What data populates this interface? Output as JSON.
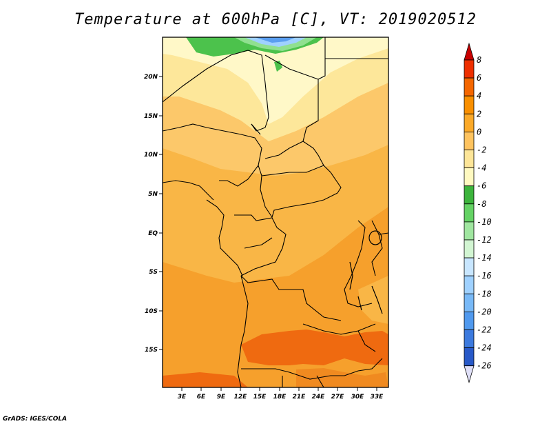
{
  "title": "Temperature at 600hPa [C], VT: 2019020512",
  "credit": "GrADS: IGES/COLA",
  "lat_labels": [
    "20N",
    "15N",
    "10N",
    "5N",
    "EQ",
    "5S",
    "10S",
    "15S"
  ],
  "lon_labels": [
    "3E",
    "6E",
    "9E",
    "12E",
    "15E",
    "18E",
    "21E",
    "24E",
    "27E",
    "30E",
    "33E"
  ],
  "colorbar": {
    "labels": [
      "8",
      "6",
      "4",
      "2",
      "0",
      "-2",
      "-4",
      "-6",
      "-8",
      "-10",
      "-12",
      "-14",
      "-16",
      "-18",
      "-20",
      "-22",
      "-24",
      "-26"
    ],
    "colors": [
      "#c80000",
      "#ee2f00",
      "#f46600",
      "#f98f00",
      "#fba928",
      "#fec35f",
      "#fde598",
      "#fff9c0",
      "#3cb43c",
      "#64d264",
      "#a0e6a0",
      "#d2f5d2",
      "#c8e6ff",
      "#9fd1ff",
      "#78b9f7",
      "#5099ee",
      "#3c7ade",
      "#2859c8",
      "#1a3faa",
      "#102890",
      "#141464",
      "#e0e0f8"
    ]
  },
  "colors": {
    "orange_dark": "#ef6a10",
    "orange": "#f6a02c",
    "orange_light": "#f9b646",
    "yellow_orange": "#fcc86a",
    "yellow": "#fde79a",
    "pale_yellow": "#fff8c8",
    "green": "#4cc24c",
    "light_green": "#90e090",
    "light_blue": "#9fd1ff",
    "blue": "#5a9ef0"
  }
}
